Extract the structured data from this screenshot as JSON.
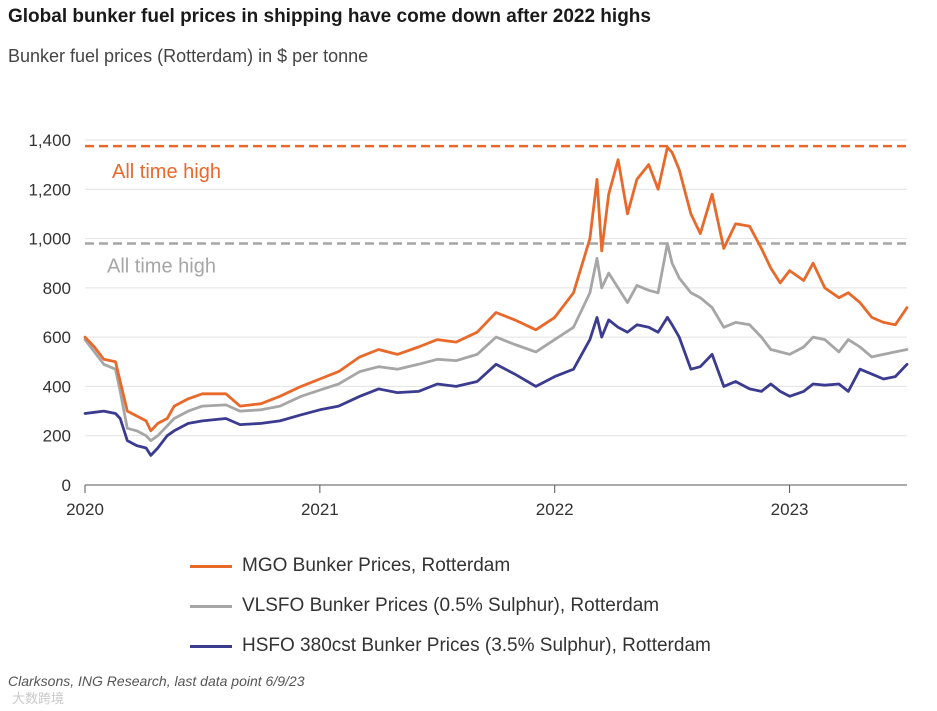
{
  "header": {
    "title": "Global bunker fuel prices in shipping have come down after 2022 highs",
    "subtitle": "Bunker fuel prices (Rotterdam) in $ per tonne"
  },
  "footer": {
    "source": "Clarksons, ING Research, last data point 6/9/23",
    "watermark": "大数跨境"
  },
  "chart_data": {
    "type": "line",
    "ylim": [
      0,
      1400
    ],
    "yticks": [
      0,
      200,
      400,
      600,
      800,
      1000,
      1200,
      1400
    ],
    "ytick_labels": [
      "0",
      "200",
      "400",
      "600",
      "800",
      "1,000",
      "1,200",
      "1,400"
    ],
    "xlim": [
      2020.0,
      2023.5
    ],
    "xticks": [
      2020,
      2021,
      2022,
      2023
    ],
    "xtick_labels": [
      "2020",
      "2021",
      "2022",
      "2023"
    ],
    "grid": true,
    "legend_position": "bottom",
    "reference_lines": [
      {
        "label": "All time high",
        "y": 1375,
        "color": "#e8692a"
      },
      {
        "label": "All time high",
        "y": 980,
        "color": "#a6a6a6"
      }
    ],
    "series": [
      {
        "name": "MGO Bunker Prices, Rotterdam",
        "color": "#e8692a",
        "points": [
          [
            2020.0,
            600
          ],
          [
            2020.04,
            560
          ],
          [
            2020.08,
            510
          ],
          [
            2020.13,
            500
          ],
          [
            2020.15,
            420
          ],
          [
            2020.18,
            300
          ],
          [
            2020.22,
            280
          ],
          [
            2020.26,
            260
          ],
          [
            2020.28,
            220
          ],
          [
            2020.31,
            250
          ],
          [
            2020.35,
            270
          ],
          [
            2020.38,
            320
          ],
          [
            2020.44,
            350
          ],
          [
            2020.5,
            370
          ],
          [
            2020.6,
            370
          ],
          [
            2020.66,
            320
          ],
          [
            2020.75,
            330
          ],
          [
            2020.83,
            360
          ],
          [
            2020.92,
            400
          ],
          [
            2021.0,
            430
          ],
          [
            2021.08,
            460
          ],
          [
            2021.17,
            520
          ],
          [
            2021.25,
            550
          ],
          [
            2021.33,
            530
          ],
          [
            2021.42,
            560
          ],
          [
            2021.5,
            590
          ],
          [
            2021.58,
            580
          ],
          [
            2021.67,
            620
          ],
          [
            2021.75,
            700
          ],
          [
            2021.83,
            670
          ],
          [
            2021.92,
            630
          ],
          [
            2022.0,
            680
          ],
          [
            2022.08,
            780
          ],
          [
            2022.15,
            1000
          ],
          [
            2022.18,
            1240
          ],
          [
            2022.2,
            950
          ],
          [
            2022.23,
            1180
          ],
          [
            2022.27,
            1320
          ],
          [
            2022.31,
            1100
          ],
          [
            2022.35,
            1240
          ],
          [
            2022.4,
            1300
          ],
          [
            2022.44,
            1200
          ],
          [
            2022.48,
            1370
          ],
          [
            2022.5,
            1350
          ],
          [
            2022.53,
            1280
          ],
          [
            2022.58,
            1100
          ],
          [
            2022.62,
            1020
          ],
          [
            2022.67,
            1180
          ],
          [
            2022.72,
            960
          ],
          [
            2022.77,
            1060
          ],
          [
            2022.83,
            1050
          ],
          [
            2022.88,
            960
          ],
          [
            2022.92,
            880
          ],
          [
            2022.96,
            820
          ],
          [
            2023.0,
            870
          ],
          [
            2023.06,
            830
          ],
          [
            2023.1,
            900
          ],
          [
            2023.15,
            800
          ],
          [
            2023.21,
            760
          ],
          [
            2023.25,
            780
          ],
          [
            2023.3,
            740
          ],
          [
            2023.35,
            680
          ],
          [
            2023.4,
            660
          ],
          [
            2023.45,
            650
          ],
          [
            2023.5,
            720
          ]
        ]
      },
      {
        "name": "VLSFO Bunker Prices (0.5% Sulphur), Rotterdam",
        "color": "#a6a6a6",
        "points": [
          [
            2020.0,
            590
          ],
          [
            2020.04,
            540
          ],
          [
            2020.08,
            490
          ],
          [
            2020.13,
            470
          ],
          [
            2020.15,
            380
          ],
          [
            2020.18,
            230
          ],
          [
            2020.22,
            220
          ],
          [
            2020.26,
            200
          ],
          [
            2020.28,
            180
          ],
          [
            2020.31,
            200
          ],
          [
            2020.35,
            240
          ],
          [
            2020.38,
            270
          ],
          [
            2020.44,
            300
          ],
          [
            2020.5,
            320
          ],
          [
            2020.6,
            325
          ],
          [
            2020.66,
            300
          ],
          [
            2020.75,
            305
          ],
          [
            2020.83,
            320
          ],
          [
            2020.92,
            360
          ],
          [
            2021.0,
            385
          ],
          [
            2021.08,
            410
          ],
          [
            2021.17,
            460
          ],
          [
            2021.25,
            480
          ],
          [
            2021.33,
            470
          ],
          [
            2021.42,
            490
          ],
          [
            2021.5,
            510
          ],
          [
            2021.58,
            505
          ],
          [
            2021.67,
            530
          ],
          [
            2021.75,
            600
          ],
          [
            2021.83,
            570
          ],
          [
            2021.92,
            540
          ],
          [
            2022.0,
            590
          ],
          [
            2022.08,
            640
          ],
          [
            2022.15,
            780
          ],
          [
            2022.18,
            920
          ],
          [
            2022.2,
            800
          ],
          [
            2022.23,
            860
          ],
          [
            2022.27,
            800
          ],
          [
            2022.31,
            740
          ],
          [
            2022.35,
            810
          ],
          [
            2022.4,
            790
          ],
          [
            2022.44,
            780
          ],
          [
            2022.48,
            980
          ],
          [
            2022.5,
            900
          ],
          [
            2022.53,
            840
          ],
          [
            2022.58,
            780
          ],
          [
            2022.62,
            760
          ],
          [
            2022.67,
            720
          ],
          [
            2022.72,
            640
          ],
          [
            2022.77,
            660
          ],
          [
            2022.83,
            650
          ],
          [
            2022.88,
            600
          ],
          [
            2022.92,
            550
          ],
          [
            2022.96,
            540
          ],
          [
            2023.0,
            530
          ],
          [
            2023.06,
            560
          ],
          [
            2023.1,
            600
          ],
          [
            2023.15,
            590
          ],
          [
            2023.21,
            540
          ],
          [
            2023.25,
            590
          ],
          [
            2023.3,
            560
          ],
          [
            2023.35,
            520
          ],
          [
            2023.4,
            530
          ],
          [
            2023.45,
            540
          ],
          [
            2023.5,
            550
          ]
        ]
      },
      {
        "name": "HSFO 380cst Bunker Prices (3.5% Sulphur), Rotterdam",
        "color": "#3b3b8f",
        "points": [
          [
            2020.0,
            290
          ],
          [
            2020.04,
            295
          ],
          [
            2020.08,
            300
          ],
          [
            2020.13,
            290
          ],
          [
            2020.15,
            270
          ],
          [
            2020.18,
            180
          ],
          [
            2020.22,
            160
          ],
          [
            2020.26,
            150
          ],
          [
            2020.28,
            120
          ],
          [
            2020.31,
            150
          ],
          [
            2020.35,
            200
          ],
          [
            2020.38,
            220
          ],
          [
            2020.44,
            250
          ],
          [
            2020.5,
            260
          ],
          [
            2020.6,
            270
          ],
          [
            2020.66,
            245
          ],
          [
            2020.75,
            250
          ],
          [
            2020.83,
            260
          ],
          [
            2020.92,
            285
          ],
          [
            2021.0,
            305
          ],
          [
            2021.08,
            320
          ],
          [
            2021.17,
            360
          ],
          [
            2021.25,
            390
          ],
          [
            2021.33,
            375
          ],
          [
            2021.42,
            380
          ],
          [
            2021.5,
            410
          ],
          [
            2021.58,
            400
          ],
          [
            2021.67,
            420
          ],
          [
            2021.75,
            490
          ],
          [
            2021.83,
            450
          ],
          [
            2021.92,
            400
          ],
          [
            2022.0,
            440
          ],
          [
            2022.08,
            470
          ],
          [
            2022.15,
            590
          ],
          [
            2022.18,
            680
          ],
          [
            2022.2,
            600
          ],
          [
            2022.23,
            670
          ],
          [
            2022.27,
            640
          ],
          [
            2022.31,
            620
          ],
          [
            2022.35,
            650
          ],
          [
            2022.4,
            640
          ],
          [
            2022.44,
            620
          ],
          [
            2022.48,
            680
          ],
          [
            2022.5,
            650
          ],
          [
            2022.53,
            600
          ],
          [
            2022.58,
            470
          ],
          [
            2022.62,
            480
          ],
          [
            2022.67,
            530
          ],
          [
            2022.72,
            400
          ],
          [
            2022.77,
            420
          ],
          [
            2022.83,
            390
          ],
          [
            2022.88,
            380
          ],
          [
            2022.92,
            410
          ],
          [
            2022.96,
            380
          ],
          [
            2023.0,
            360
          ],
          [
            2023.06,
            380
          ],
          [
            2023.1,
            410
          ],
          [
            2023.15,
            405
          ],
          [
            2023.21,
            410
          ],
          [
            2023.25,
            380
          ],
          [
            2023.3,
            470
          ],
          [
            2023.35,
            450
          ],
          [
            2023.4,
            430
          ],
          [
            2023.45,
            440
          ],
          [
            2023.5,
            490
          ]
        ]
      }
    ]
  }
}
